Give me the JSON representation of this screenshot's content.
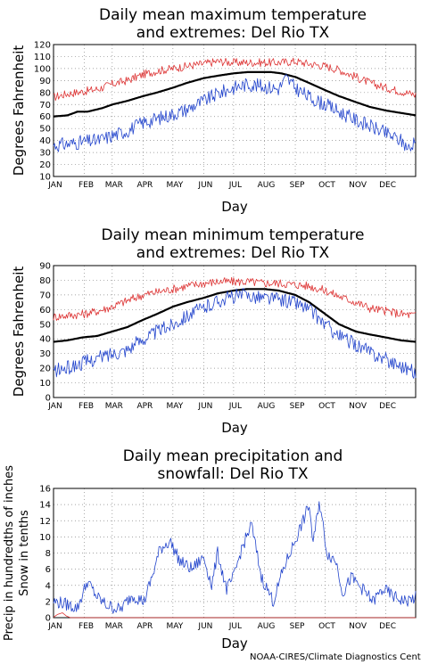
{
  "chart_data": [
    {
      "type": "line",
      "title": "Daily mean maximum temperature\nand extremes: Del Rio TX",
      "xlabel": "Day",
      "ylabel": "Degrees Fahrenheit",
      "ylim": [
        10,
        120
      ],
      "yticks": [
        10,
        20,
        30,
        40,
        50,
        60,
        70,
        80,
        90,
        100,
        110,
        120
      ],
      "xlim": [
        1,
        365
      ],
      "xticks": [
        "JAN",
        "FEB",
        "MAR",
        "APR",
        "MAY",
        "JUN",
        "JUL",
        "AUG",
        "SEP",
        "OCT",
        "NOV",
        "DEC"
      ],
      "grid": true,
      "series": [
        {
          "color": "#dd3333",
          "noise": 3.5,
          "points": [
            [
              1,
              76
            ],
            [
              15,
              79
            ],
            [
              32,
              81
            ],
            [
              46,
              83
            ],
            [
              60,
              87
            ],
            [
              75,
              90
            ],
            [
              91,
              95
            ],
            [
              105,
              98
            ],
            [
              121,
              100
            ],
            [
              135,
              102
            ],
            [
              152,
              104
            ],
            [
              166,
              106
            ],
            [
              182,
              105
            ],
            [
              196,
              105
            ],
            [
              213,
              105
            ],
            [
              227,
              105
            ],
            [
              244,
              106
            ],
            [
              258,
              104
            ],
            [
              274,
              102
            ],
            [
              288,
              99
            ],
            [
              305,
              93
            ],
            [
              319,
              88
            ],
            [
              335,
              84
            ],
            [
              350,
              81
            ],
            [
              365,
              78
            ]
          ]
        },
        {
          "color": "#000000",
          "noise": 0,
          "width": 2.2,
          "points": [
            [
              1,
              60
            ],
            [
              15,
              61
            ],
            [
              25,
              64
            ],
            [
              35,
              64
            ],
            [
              50,
              67
            ],
            [
              60,
              70
            ],
            [
              75,
              73
            ],
            [
              91,
              77
            ],
            [
              105,
              80
            ],
            [
              121,
              84
            ],
            [
              135,
              88
            ],
            [
              152,
              92
            ],
            [
              166,
              94
            ],
            [
              182,
              96
            ],
            [
              196,
              97
            ],
            [
              213,
              97
            ],
            [
              220,
              97
            ],
            [
              230,
              96
            ],
            [
              244,
              93
            ],
            [
              258,
              88
            ],
            [
              274,
              82
            ],
            [
              288,
              77
            ],
            [
              305,
              72
            ],
            [
              319,
              68
            ],
            [
              335,
              65
            ],
            [
              350,
              63
            ],
            [
              365,
              61
            ]
          ]
        },
        {
          "color": "#2244cc",
          "noise": 6,
          "points": [
            [
              1,
              36
            ],
            [
              15,
              37
            ],
            [
              32,
              39
            ],
            [
              46,
              40
            ],
            [
              60,
              44
            ],
            [
              75,
              48
            ],
            [
              91,
              55
            ],
            [
              105,
              58
            ],
            [
              121,
              62
            ],
            [
              135,
              66
            ],
            [
              152,
              73
            ],
            [
              166,
              79
            ],
            [
              182,
              84
            ],
            [
              196,
              87
            ],
            [
              213,
              85
            ],
            [
              227,
              83
            ],
            [
              235,
              92
            ],
            [
              244,
              84
            ],
            [
              258,
              76
            ],
            [
              274,
              70
            ],
            [
              288,
              64
            ],
            [
              305,
              57
            ],
            [
              319,
              52
            ],
            [
              335,
              46
            ],
            [
              350,
              40
            ],
            [
              360,
              32
            ],
            [
              365,
              45
            ]
          ]
        }
      ]
    },
    {
      "type": "line",
      "title": "Daily mean minimum temperature\nand extremes: Del Rio TX",
      "xlabel": "Day",
      "ylabel": "Degrees Fahrenheit",
      "ylim": [
        0,
        90
      ],
      "yticks": [
        0,
        10,
        20,
        30,
        40,
        50,
        60,
        70,
        80,
        90
      ],
      "xlim": [
        1,
        365
      ],
      "xticks": [
        "JAN",
        "FEB",
        "MAR",
        "APR",
        "MAY",
        "JUN",
        "JUL",
        "AUG",
        "SEP",
        "OCT",
        "NOV",
        "DEC"
      ],
      "grid": true,
      "series": [
        {
          "color": "#dd3333",
          "noise": 3,
          "points": [
            [
              1,
              55
            ],
            [
              15,
              56
            ],
            [
              32,
              57
            ],
            [
              46,
              59
            ],
            [
              60,
              62
            ],
            [
              75,
              66
            ],
            [
              91,
              70
            ],
            [
              105,
              72
            ],
            [
              121,
              74
            ],
            [
              135,
              76
            ],
            [
              152,
              78
            ],
            [
              166,
              79
            ],
            [
              182,
              79
            ],
            [
              196,
              79
            ],
            [
              213,
              78
            ],
            [
              227,
              78
            ],
            [
              244,
              77
            ],
            [
              258,
              76
            ],
            [
              274,
              73
            ],
            [
              288,
              69
            ],
            [
              305,
              65
            ],
            [
              319,
              61
            ],
            [
              335,
              59
            ],
            [
              350,
              57
            ],
            [
              365,
              56
            ]
          ]
        },
        {
          "color": "#000000",
          "noise": 0,
          "width": 2.2,
          "points": [
            [
              1,
              38
            ],
            [
              15,
              39
            ],
            [
              30,
              41
            ],
            [
              45,
              42
            ],
            [
              60,
              45
            ],
            [
              75,
              48
            ],
            [
              91,
              53
            ],
            [
              105,
              57
            ],
            [
              121,
              62
            ],
            [
              135,
              65
            ],
            [
              152,
              68
            ],
            [
              166,
              71
            ],
            [
              182,
              73
            ],
            [
              196,
              74
            ],
            [
              213,
              74
            ],
            [
              227,
              73
            ],
            [
              244,
              70
            ],
            [
              258,
              65
            ],
            [
              274,
              57
            ],
            [
              288,
              50
            ],
            [
              305,
              45
            ],
            [
              319,
              43
            ],
            [
              335,
              41
            ],
            [
              350,
              39
            ],
            [
              365,
              38
            ]
          ]
        },
        {
          "color": "#2244cc",
          "noise": 5,
          "points": [
            [
              1,
              18
            ],
            [
              15,
              20
            ],
            [
              32,
              24
            ],
            [
              46,
              27
            ],
            [
              60,
              30
            ],
            [
              75,
              33
            ],
            [
              91,
              40
            ],
            [
              105,
              45
            ],
            [
              121,
              50
            ],
            [
              135,
              56
            ],
            [
              152,
              61
            ],
            [
              166,
              66
            ],
            [
              182,
              69
            ],
            [
              196,
              70
            ],
            [
              213,
              68
            ],
            [
              227,
              67
            ],
            [
              244,
              65
            ],
            [
              258,
              60
            ],
            [
              274,
              50
            ],
            [
              288,
              42
            ],
            [
              305,
              36
            ],
            [
              319,
              31
            ],
            [
              335,
              26
            ],
            [
              350,
              22
            ],
            [
              365,
              17
            ]
          ]
        }
      ]
    },
    {
      "type": "line",
      "title": "Daily mean precipitation and\nsnowfall: Del Rio TX",
      "xlabel": "Day",
      "ylabel": "Precip in hundredths of inches\nSnow in tenths",
      "ylim": [
        0,
        16
      ],
      "yticks": [
        0,
        2,
        4,
        6,
        8,
        10,
        12,
        14,
        16
      ],
      "xlim": [
        1,
        365
      ],
      "xticks": [
        "JAN",
        "FEB",
        "MAR",
        "APR",
        "MAY",
        "JUN",
        "JUL",
        "AUG",
        "SEP",
        "OCT",
        "NOV",
        "DEC"
      ],
      "grid": true,
      "series": [
        {
          "color": "#2244cc",
          "noise": 0.8,
          "points": [
            [
              1,
              2
            ],
            [
              10,
              1.8
            ],
            [
              25,
              1.2
            ],
            [
              35,
              4.5
            ],
            [
              45,
              2.5
            ],
            [
              55,
              1.5
            ],
            [
              68,
              1
            ],
            [
              80,
              2.8
            ],
            [
              92,
              2
            ],
            [
              100,
              5
            ],
            [
              108,
              8.5
            ],
            [
              118,
              9.5
            ],
            [
              128,
              7
            ],
            [
              140,
              6
            ],
            [
              152,
              7.5
            ],
            [
              160,
              4
            ],
            [
              166,
              8
            ],
            [
              175,
              3.5
            ],
            [
              182,
              5
            ],
            [
              190,
              8.5
            ],
            [
              200,
              11.5
            ],
            [
              210,
              5
            ],
            [
              222,
              2
            ],
            [
              232,
              6
            ],
            [
              242,
              9
            ],
            [
              252,
              12
            ],
            [
              258,
              14
            ],
            [
              262,
              9
            ],
            [
              268,
              14.5
            ],
            [
              276,
              8
            ],
            [
              285,
              7
            ],
            [
              292,
              3
            ],
            [
              300,
              5
            ],
            [
              312,
              3.5
            ],
            [
              322,
              2
            ],
            [
              332,
              3.5
            ],
            [
              345,
              2.5
            ],
            [
              355,
              2
            ],
            [
              365,
              2.5
            ]
          ]
        },
        {
          "color": "#dd3333",
          "noise": 0,
          "points": [
            [
              1,
              0.05
            ],
            [
              5,
              0.4
            ],
            [
              10,
              0.6
            ],
            [
              14,
              0.2
            ],
            [
              18,
              0
            ],
            [
              365,
              0
            ]
          ]
        }
      ]
    }
  ],
  "credit": "NOAA-CIRES/Climate Diagnostics Center"
}
